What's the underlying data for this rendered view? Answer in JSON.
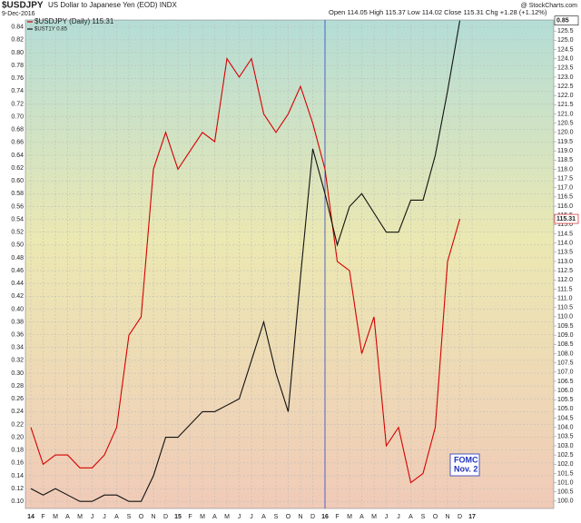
{
  "chart_data": {
    "type": "line",
    "title": "$USDJPY",
    "subtitle": "US Dollar to Japanese Yen (EOD) INDX",
    "date": "9-Dec-2016",
    "quote": "Open 114.05 High 115.37 Low 114.02 Close 115.31 Chg +1.28 (+1.12%)",
    "source": "@ StockCharts.com",
    "annotation": [
      "FOMC",
      "Nov. 2"
    ],
    "categories": [
      "14",
      "F",
      "M",
      "A",
      "M",
      "J",
      "J",
      "A",
      "S",
      "O",
      "N",
      "D",
      "15",
      "F",
      "M",
      "A",
      "M",
      "J",
      "J",
      "A",
      "S",
      "O",
      "N",
      "D",
      "16",
      "F",
      "M",
      "A",
      "M",
      "J",
      "J",
      "A",
      "S",
      "O",
      "N",
      "D",
      "17"
    ],
    "series": [
      {
        "name": "$USDJPY (Daily) 115.31",
        "color": "#d40000",
        "axis": "y2",
        "values": [
          104,
          102,
          102.5,
          102.5,
          101.8,
          101.8,
          102.5,
          104,
          109,
          110,
          118,
          120,
          118,
          119,
          120,
          119.5,
          124,
          123,
          124,
          121,
          120,
          121,
          122.5,
          120.5,
          118,
          113,
          112.5,
          108,
          110,
          103,
          104,
          101,
          101.5,
          104,
          113,
          115.31,
          null
        ]
      },
      {
        "name": "$UST1Y 0.85",
        "color": "#111111",
        "values": [
          0.12,
          0.11,
          0.12,
          0.11,
          0.1,
          0.1,
          0.11,
          0.11,
          0.1,
          0.1,
          0.14,
          0.2,
          0.2,
          0.22,
          0.24,
          0.24,
          0.25,
          0.26,
          0.32,
          0.38,
          0.3,
          0.24,
          0.45,
          0.65,
          0.58,
          0.5,
          0.56,
          0.58,
          0.55,
          0.52,
          0.52,
          0.57,
          0.57,
          0.64,
          0.74,
          0.85,
          null
        ]
      }
    ],
    "ylim": [
      0.089,
      0.851
    ],
    "yticks": [
      {
        "value": 0.1,
        "label": "0.10"
      },
      0.12,
      0.14,
      0.16,
      0.18,
      {
        "value": 0.2,
        "label": "0.20"
      },
      0.22,
      0.24,
      0.26,
      0.28,
      {
        "value": 0.3,
        "label": "0.30"
      },
      0.32,
      0.34,
      0.36,
      0.38,
      {
        "value": 0.4,
        "label": "0.40"
      },
      0.42,
      0.44,
      0.46,
      0.48,
      {
        "value": 0.5,
        "label": "0.50"
      },
      0.52,
      0.54,
      0.56,
      0.58,
      {
        "value": 0.6,
        "label": "0.60"
      },
      0.62,
      0.64,
      0.66,
      0.68,
      {
        "value": 0.7,
        "label": "0.70"
      },
      0.72,
      0.74,
      0.76,
      0.78,
      {
        "value": 0.8,
        "label": "0.80"
      },
      0.82,
      0.84
    ],
    "y2lim": [
      99.6,
      126.1
    ],
    "y2ticks": [
      {
        "value": 100,
        "label": "100.0"
      },
      100.5,
      {
        "value": 101,
        "label": "101.0"
      },
      101.5,
      {
        "value": 102,
        "label": "102.0"
      },
      102.5,
      {
        "value": 103,
        "label": "103.0"
      },
      103.5,
      {
        "value": 104,
        "label": "104.0"
      },
      104.5,
      {
        "value": 105,
        "label": "105.0"
      },
      105.5,
      {
        "value": 106,
        "label": "106.0"
      },
      106.5,
      {
        "value": 107,
        "label": "107.0"
      },
      107.5,
      {
        "value": 108,
        "label": "108.0"
      },
      108.5,
      {
        "value": 109,
        "label": "109.0"
      },
      109.5,
      {
        "value": 110,
        "label": "110.0"
      },
      110.5,
      {
        "value": 111,
        "label": "111.0"
      },
      111.5,
      {
        "value": 112,
        "label": "112.0"
      },
      112.5,
      {
        "value": 113,
        "label": "113.0"
      },
      113.5,
      {
        "value": 114,
        "label": "114.0"
      },
      114.5,
      {
        "value": 115,
        "label": "115.0"
      },
      115.5,
      {
        "value": 116,
        "label": "116.0"
      },
      116.5,
      {
        "value": 117,
        "label": "117.0"
      },
      117.5,
      {
        "value": 118,
        "label": "118.0"
      },
      118.5,
      {
        "value": 119,
        "label": "119.0"
      },
      119.5,
      {
        "value": 120,
        "label": "120.0"
      },
      120.5,
      {
        "value": 121,
        "label": "121.0"
      },
      121.5,
      {
        "value": 122,
        "label": "122.0"
      },
      122.5,
      {
        "value": 123,
        "label": "123.0"
      },
      123.5,
      {
        "value": 124,
        "label": "124.0"
      },
      124.5,
      {
        "value": 125,
        "label": "125.0"
      },
      125.5
    ],
    "grid": true
  }
}
